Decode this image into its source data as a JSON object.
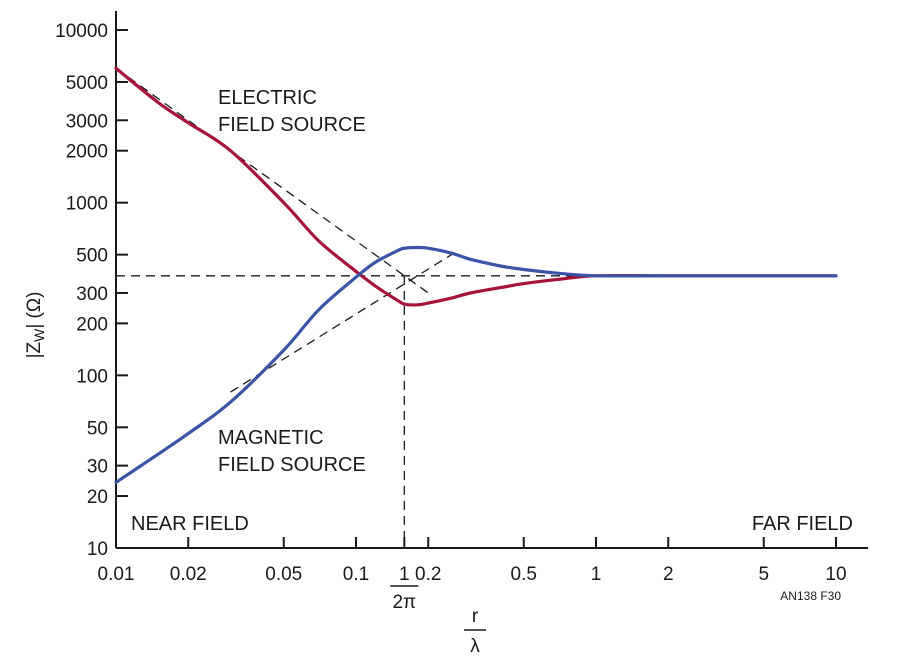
{
  "chart_data": {
    "type": "line",
    "x_scale": "log",
    "y_scale": "log",
    "xlim": [
      0.01,
      10
    ],
    "ylim": [
      10,
      10000
    ],
    "xticks": [
      0.01,
      0.02,
      0.05,
      0.1,
      0.2,
      0.5,
      1,
      2,
      5,
      10
    ],
    "xtick_labels": [
      "0.01",
      "0.02",
      "0.05",
      "0.1",
      "0.2",
      "0.5",
      "1",
      "2",
      "5",
      "10"
    ],
    "yticks": [
      10,
      20,
      30,
      50,
      100,
      200,
      300,
      500,
      1000,
      2000,
      3000,
      5000,
      10000
    ],
    "ytick_labels": [
      "10",
      "20",
      "30",
      "50",
      "100",
      "200",
      "300",
      "500",
      "1000",
      "2000",
      "3000",
      "5000",
      "10000"
    ],
    "xlabel_numerator": "r",
    "xlabel_denominator": "λ",
    "ylabel": "|Z",
    "ylabel_sub": "W",
    "ylabel_tail": "| (Ω)",
    "special_tick": {
      "x": 0.159,
      "numerator": "1",
      "denominator": "2π"
    },
    "grid": false,
    "series": [
      {
        "color": "#a6123a",
        "points": [
          [
            0.01,
            6000
          ],
          [
            0.015,
            3800
          ],
          [
            0.02,
            2900
          ],
          [
            0.03,
            2000
          ],
          [
            0.05,
            1000
          ],
          [
            0.07,
            600
          ],
          [
            0.1,
            400
          ],
          [
            0.12,
            330
          ],
          [
            0.15,
            270
          ],
          [
            0.16,
            258
          ],
          [
            0.18,
            256
          ],
          [
            0.2,
            262
          ],
          [
            0.25,
            280
          ],
          [
            0.3,
            300
          ],
          [
            0.4,
            322
          ],
          [
            0.5,
            340
          ],
          [
            0.7,
            360
          ],
          [
            1,
            377
          ],
          [
            2,
            377
          ],
          [
            5,
            377
          ],
          [
            10,
            377
          ]
        ]
      },
      {
        "color": "#3a55a8",
        "points": [
          [
            0.01,
            24
          ],
          [
            0.015,
            35
          ],
          [
            0.02,
            46
          ],
          [
            0.03,
            70
          ],
          [
            0.05,
            140
          ],
          [
            0.07,
            240
          ],
          [
            0.1,
            370
          ],
          [
            0.12,
            450
          ],
          [
            0.15,
            530
          ],
          [
            0.16,
            545
          ],
          [
            0.18,
            550
          ],
          [
            0.2,
            545
          ],
          [
            0.25,
            510
          ],
          [
            0.3,
            470
          ],
          [
            0.4,
            430
          ],
          [
            0.5,
            410
          ],
          [
            0.7,
            390
          ],
          [
            1,
            377
          ],
          [
            2,
            377
          ],
          [
            5,
            377
          ],
          [
            10,
            377
          ]
        ]
      }
    ],
    "asymptotes": {
      "electric": [
        [
          0.01,
          6000
        ],
        [
          0.2,
          300
        ]
      ],
      "magnetic": [
        [
          0.03,
          80
        ],
        [
          0.25,
          500
        ]
      ],
      "reference_y": 377,
      "reference_x": 0.159
    },
    "annotations": [
      {
        "id": "electric-1",
        "text": "ELECTRIC"
      },
      {
        "id": "electric-2",
        "text": "FIELD SOURCE"
      },
      {
        "id": "magnetic-1",
        "text": "MAGNETIC"
      },
      {
        "id": "magnetic-2",
        "text": "FIELD SOURCE"
      },
      {
        "id": "near",
        "text": "NEAR FIELD"
      },
      {
        "id": "far",
        "text": "FAR FIELD"
      },
      {
        "id": "figure-id",
        "text": "AN138 F30"
      }
    ]
  }
}
